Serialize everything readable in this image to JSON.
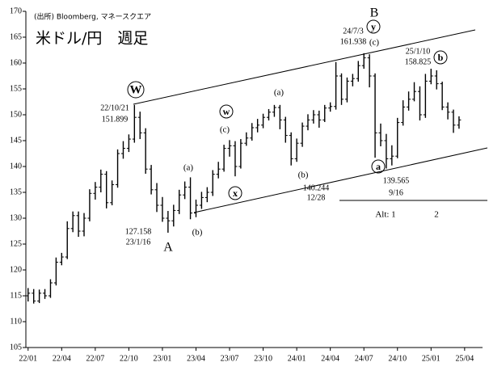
{
  "chart_data": {
    "type": "ohlc",
    "title": "米ドル/円　週足",
    "subtitle": "(出所) Bloomberg, マネースクエア",
    "color": "#000000",
    "x": [
      0,
      0.5,
      1,
      1.5,
      2,
      2.5,
      3,
      3.5,
      4,
      4.5,
      5,
      5.5,
      6,
      6.5,
      7,
      7.5,
      8,
      8.5,
      9,
      9.5,
      10,
      10.5,
      11,
      11.5,
      12,
      12.5,
      13,
      13.5,
      14,
      14.5,
      15,
      15.5,
      16,
      16.5,
      17,
      17.5,
      18,
      18.5,
      19,
      19.5,
      20,
      20.5,
      21,
      21.5,
      22,
      22.5,
      23,
      23.5,
      24,
      24.5,
      25,
      25.5,
      26,
      26.5,
      27,
      27.5,
      28,
      28.5,
      29,
      29.5,
      30,
      30.5,
      31,
      31.5,
      32,
      32.5,
      33,
      33.5,
      34,
      34.5,
      35,
      35.5,
      36,
      36.5,
      37,
      37.5,
      38,
      38.5
    ],
    "open": [
      115.0,
      115.5,
      114.0,
      115.5,
      115.0,
      117.5,
      121.5,
      122.5,
      128.0,
      130.5,
      127.5,
      130.0,
      134.8,
      136.0,
      138.5,
      133.0,
      136.5,
      142.5,
      143.5,
      145.3,
      149.5,
      146.5,
      139.5,
      135.5,
      132.5,
      130.0,
      129.5,
      131.5,
      134.5,
      136.0,
      131.0,
      132.5,
      134.0,
      135.0,
      138.5,
      139.5,
      143.5,
      144.0,
      140.0,
      144.5,
      145.5,
      147.5,
      148.0,
      149.5,
      150.5,
      151.4,
      149.0,
      146.0,
      141.5,
      144.5,
      147.8,
      149.0,
      150.0,
      149.0,
      151.3,
      151.6,
      157.5,
      153.0,
      156.5,
      157.0,
      159.5,
      161.0,
      157.5,
      146.5,
      145.0,
      141.5,
      142.0,
      148.5,
      151.5,
      153.0,
      154.5,
      150.0,
      156.5,
      157.5,
      156.0,
      151.5,
      150.5,
      148.0
    ],
    "high": [
      116.5,
      116.3,
      116.2,
      116.3,
      118.2,
      122.4,
      123.3,
      129.4,
      131.3,
      131.3,
      131.0,
      135.6,
      137.0,
      139.4,
      139.1,
      137.3,
      143.3,
      144.9,
      146.2,
      151.9,
      150.6,
      147.4,
      140.3,
      136.8,
      134.1,
      131.4,
      132.6,
      135.5,
      137.1,
      137.9,
      133.6,
      135.1,
      136.0,
      139.3,
      140.9,
      144.2,
      145.1,
      144.9,
      145.3,
      146.6,
      148.4,
      149.2,
      150.2,
      151.1,
      151.9,
      151.9,
      149.6,
      146.6,
      145.4,
      148.5,
      150.1,
      150.9,
      150.8,
      151.9,
      152.4,
      160.2,
      158.0,
      157.2,
      157.9,
      160.4,
      161.9,
      161.7,
      158.0,
      148.3,
      146.3,
      144.1,
      149.4,
      152.8,
      154.5,
      156.3,
      155.5,
      157.9,
      158.9,
      158.6,
      156.4,
      152.4,
      151.0,
      149.7
    ],
    "low": [
      113.9,
      113.5,
      113.6,
      114.4,
      114.6,
      117.0,
      120.9,
      122.1,
      127.3,
      126.4,
      126.5,
      129.4,
      133.6,
      135.0,
      131.9,
      132.5,
      135.9,
      141.5,
      142.8,
      144.6,
      145.3,
      138.6,
      134.6,
      131.2,
      129.3,
      127.2,
      128.4,
      130.8,
      133.7,
      129.8,
      130.2,
      131.8,
      133.1,
      134.3,
      137.7,
      139.0,
      141.9,
      138.1,
      139.6,
      144.0,
      145.0,
      146.6,
      147.4,
      148.9,
      149.6,
      147.2,
      144.6,
      140.2,
      140.9,
      143.8,
      147.0,
      148.3,
      147.5,
      148.6,
      150.6,
      151.0,
      151.9,
      152.4,
      155.5,
      156.4,
      158.9,
      155.3,
      141.7,
      143.9,
      139.6,
      140.2,
      141.6,
      147.9,
      150.8,
      152.6,
      148.9,
      149.4,
      155.9,
      154.9,
      150.9,
      149.1,
      146.5,
      147.3
    ],
    "close": [
      115.5,
      114.0,
      115.5,
      115.0,
      117.5,
      121.5,
      122.5,
      128.0,
      130.5,
      127.5,
      130.0,
      134.8,
      136.0,
      138.5,
      133.0,
      136.5,
      142.5,
      143.5,
      145.3,
      149.5,
      146.5,
      139.5,
      135.5,
      132.5,
      130.0,
      129.5,
      131.5,
      134.5,
      136.0,
      131.0,
      132.5,
      134.0,
      135.0,
      138.5,
      139.5,
      143.5,
      144.0,
      140.0,
      144.5,
      145.5,
      147.5,
      148.0,
      149.5,
      150.5,
      151.4,
      149.0,
      146.0,
      141.5,
      144.5,
      147.8,
      149.0,
      150.0,
      149.0,
      151.3,
      151.6,
      157.5,
      153.0,
      156.5,
      157.0,
      159.5,
      161.0,
      157.5,
      146.5,
      145.0,
      141.5,
      142.0,
      148.5,
      151.5,
      153.0,
      154.5,
      150.0,
      156.5,
      157.5,
      156.0,
      151.5,
      150.5,
      148.0,
      149.0
    ],
    "xlim": [
      -0.2,
      40.6
    ],
    "xticks": [
      {
        "value": 0,
        "label": "22/01"
      },
      {
        "value": 3,
        "label": "22/04"
      },
      {
        "value": 6,
        "label": "22/07"
      },
      {
        "value": 9,
        "label": "22/10"
      },
      {
        "value": 12,
        "label": "23/01"
      },
      {
        "value": 15,
        "label": "23/04"
      },
      {
        "value": 18,
        "label": "23/07"
      },
      {
        "value": 21,
        "label": "23/10"
      },
      {
        "value": 24,
        "label": "24/01"
      },
      {
        "value": 27,
        "label": "24/04"
      },
      {
        "value": 30,
        "label": "24/07"
      },
      {
        "value": 33,
        "label": "24/10"
      },
      {
        "value": 36,
        "label": "25/01"
      },
      {
        "value": 39,
        "label": "25/04"
      }
    ],
    "ylim": [
      105,
      170
    ],
    "yticks": [
      105,
      110,
      115,
      120,
      125,
      130,
      135,
      140,
      145,
      150,
      155,
      160,
      165,
      170
    ],
    "annotations": [
      "W",
      "22/10/21",
      "151.899",
      "127.158",
      "23/1/16",
      "A",
      "(a)",
      "(b)",
      "w",
      "(c)",
      "x",
      "(a)",
      "(b)",
      "140.244",
      "12/28",
      "B",
      "y",
      "24/7/3",
      "161.938",
      "(c)",
      "25/1/10",
      "158.825",
      "b",
      "a",
      "139.565",
      "9/16",
      "Alt: 1",
      "2"
    ]
  }
}
